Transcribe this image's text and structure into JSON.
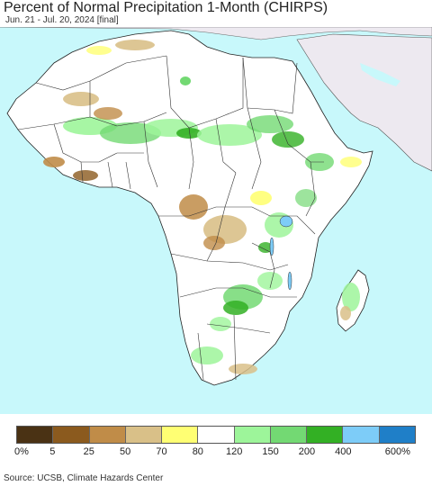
{
  "header": {
    "title": "Percent of Normal Precipitation 1-Month (CHIRPS)",
    "subtitle": "Jun. 21 - Jul. 20, 2024 [final]"
  },
  "map": {
    "ocean_color": "#c8f8fb",
    "land_base_color": "#ffffff",
    "non_region_color": "#ede9f0",
    "border_color": "#333333"
  },
  "legend": {
    "colors": [
      "#4a3214",
      "#8b5a1e",
      "#c08c48",
      "#d9c088",
      "#ffff73",
      "#ffffff",
      "#9df59a",
      "#73d973",
      "#33b024",
      "#7dccf8",
      "#1f7fc8"
    ],
    "tick_labels": [
      "0%",
      "5",
      "25",
      "50",
      "70",
      "80",
      "120",
      "150",
      "200",
      "400",
      "600%"
    ]
  },
  "footer": {
    "source": "Source: UCSB, Climate Hazards Center"
  }
}
